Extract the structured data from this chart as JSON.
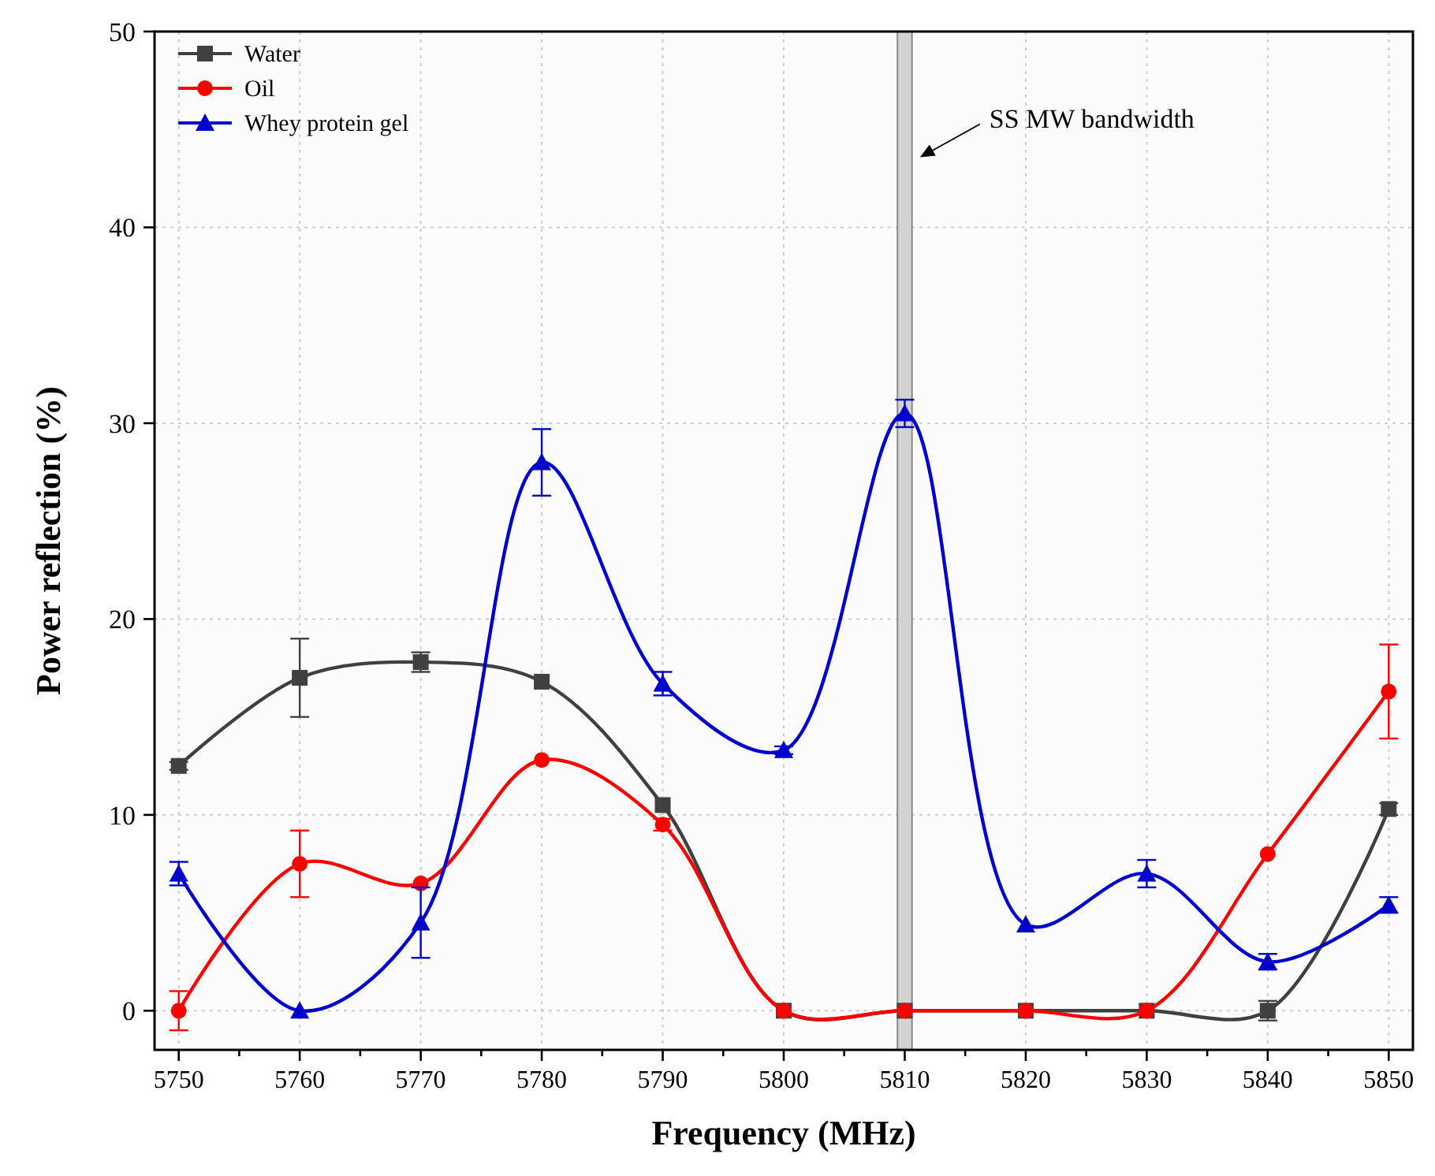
{
  "chart_data": {
    "type": "line",
    "xlabel": "Frequency (MHz)",
    "ylabel": "Power reflection (%)",
    "x": [
      5750,
      5760,
      5770,
      5780,
      5790,
      5800,
      5810,
      5820,
      5830,
      5840,
      5850
    ],
    "series": [
      {
        "name": "Water",
        "color": "#404040",
        "marker": "square",
        "values": [
          12.5,
          17.0,
          17.8,
          16.8,
          10.5,
          0,
          0,
          0,
          0,
          0,
          10.3
        ],
        "errors": [
          0.2,
          2.0,
          0.5,
          null,
          null,
          null,
          null,
          null,
          null,
          0.5,
          0.3
        ]
      },
      {
        "name": "Oil",
        "color": "#ff0000",
        "marker": "circle",
        "values": [
          0,
          7.5,
          6.5,
          12.8,
          9.5,
          0,
          0,
          0,
          0,
          8.0,
          16.3
        ],
        "errors": [
          1.0,
          1.7,
          null,
          null,
          0.3,
          null,
          null,
          null,
          null,
          null,
          2.4
        ]
      },
      {
        "name": "Whey protein gel",
        "color": "#0000cc",
        "marker": "triangle",
        "values": [
          7.0,
          0,
          4.5,
          28.0,
          16.7,
          13.3,
          30.5,
          4.4,
          7.0,
          2.5,
          5.4
        ],
        "errors": [
          0.6,
          null,
          1.8,
          1.7,
          0.6,
          0.2,
          0.7,
          null,
          0.7,
          0.4,
          0.4
        ]
      }
    ],
    "xlim": [
      5748,
      5852
    ],
    "xticks": [
      5750,
      {
        "value": 5755,
        "label": null
      },
      5760,
      {
        "value": 5765,
        "label": null
      },
      5770,
      {
        "value": 5775,
        "label": null
      },
      5780,
      {
        "value": 5785,
        "label": null
      },
      5790,
      {
        "value": 5795,
        "label": null
      },
      5800,
      {
        "value": 5805,
        "label": null
      },
      5810,
      {
        "value": 5815,
        "label": null
      },
      5820,
      {
        "value": 5825,
        "label": null
      },
      5830,
      {
        "value": 5835,
        "label": null
      },
      5840,
      {
        "value": 5845,
        "label": null
      },
      5850
    ],
    "ylim": [
      -2,
      50
    ],
    "yticks": [
      0,
      10,
      20,
      30,
      40,
      50
    ],
    "bands": [
      {
        "axis": "x",
        "from": 5809.4,
        "to": 5810.6,
        "color": "#d3d3d3"
      }
    ],
    "annotations": [
      {
        "text": "SS MW bandwidth",
        "x": 5811,
        "y": 43.5
      }
    ],
    "grid": true,
    "legend": "top left",
    "line_style": "solid"
  }
}
